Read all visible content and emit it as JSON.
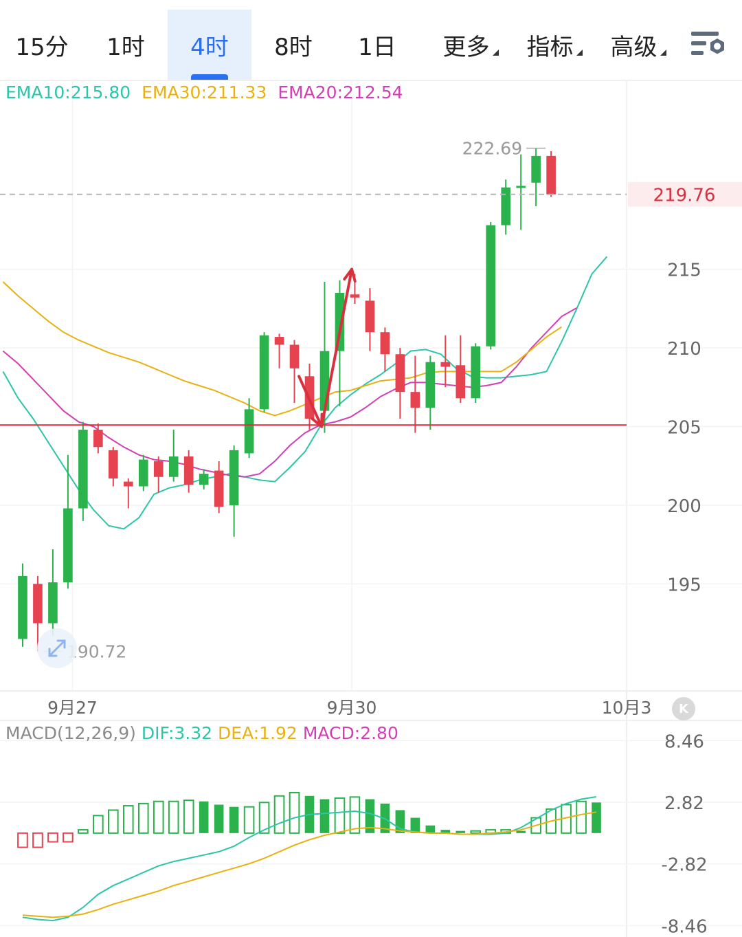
{
  "tabs": [
    {
      "label": "15分",
      "active": false,
      "dropdown": false
    },
    {
      "label": "1时",
      "active": false,
      "dropdown": false
    },
    {
      "label": "4时",
      "active": true,
      "dropdown": false
    },
    {
      "label": "8时",
      "active": false,
      "dropdown": false
    },
    {
      "label": "1日",
      "active": false,
      "dropdown": false
    },
    {
      "label": "更多",
      "active": false,
      "dropdown": true
    },
    {
      "label": "指标",
      "active": false,
      "dropdown": true
    },
    {
      "label": "高级",
      "active": false,
      "dropdown": true
    }
  ],
  "icons": {
    "settings": "chart-settings-icon",
    "fullscreen": "expand-arrows-icon",
    "k": "k-badge-icon"
  },
  "colors": {
    "up": "#2bb24c",
    "down": "#e5434f",
    "ema10": "#2cc5a8",
    "ema30": "#e8b10f",
    "ema20": "#d23fb4",
    "dif": "#2cc5a8",
    "dea": "#e8b10f",
    "macd": "#d23fb4",
    "accent": "#2a6ff0",
    "support_line": "#d9303e",
    "last_price_label": "#d9303e"
  },
  "k_button_label": "K",
  "chart_data": {
    "type": "candlestick",
    "ema_legend": [
      {
        "label": "EMA10",
        "value": "215.80"
      },
      {
        "label": "EMA30",
        "value": "211.33"
      },
      {
        "label": "EMA20",
        "value": "212.54"
      }
    ],
    "y_ticks": [
      "215",
      "210",
      "205",
      "200",
      "195"
    ],
    "y_tick_values": [
      215,
      210,
      205,
      200,
      195
    ],
    "x_tick_labels": [
      "9月27",
      "9月30",
      "10月3"
    ],
    "x_tick_at": [
      3.3,
      21.8,
      40
    ],
    "ylim": [
      188.2,
      227.0
    ],
    "xlim": [
      -1.5,
      40.0
    ],
    "last_price": "219.76",
    "last_price_value": 219.76,
    "high_label": "222.69",
    "high_value": 222.69,
    "high_index": 35,
    "low_label": "190.72",
    "low_value": 190.72,
    "low_index": 1,
    "support_level": 205.1,
    "annotation_arrows": [
      {
        "from": [
          18.3,
          208.2
        ],
        "to": [
          19.8,
          205.0
        ]
      },
      {
        "from": [
          19.8,
          205.0
        ],
        "to": [
          21.8,
          215.0
        ]
      }
    ],
    "candles": [
      {
        "o": 191.5,
        "c": 195.5,
        "h": 196.3,
        "l": 191.0
      },
      {
        "o": 195.0,
        "c": 192.5,
        "h": 195.5,
        "l": 190.72
      },
      {
        "o": 192.5,
        "c": 195.1,
        "h": 197.2,
        "l": 191.7
      },
      {
        "o": 195.1,
        "c": 199.8,
        "h": 203.2,
        "l": 194.7
      },
      {
        "o": 199.8,
        "c": 204.8,
        "h": 205.3,
        "l": 199.0
      },
      {
        "o": 204.8,
        "c": 203.7,
        "h": 205.2,
        "l": 203.3
      },
      {
        "o": 203.5,
        "c": 201.7,
        "h": 203.7,
        "l": 201.2
      },
      {
        "o": 201.5,
        "c": 201.2,
        "h": 201.7,
        "l": 199.8
      },
      {
        "o": 201.2,
        "c": 202.9,
        "h": 203.2,
        "l": 200.9
      },
      {
        "o": 202.8,
        "c": 201.8,
        "h": 203.1,
        "l": 200.8
      },
      {
        "o": 201.8,
        "c": 203.1,
        "h": 204.8,
        "l": 201.5
      },
      {
        "o": 203.1,
        "c": 201.3,
        "h": 203.5,
        "l": 200.8
      },
      {
        "o": 201.3,
        "c": 202.0,
        "h": 202.3,
        "l": 201.0
      },
      {
        "o": 202.2,
        "c": 199.9,
        "h": 202.8,
        "l": 199.5
      },
      {
        "o": 200.0,
        "c": 203.5,
        "h": 203.8,
        "l": 198.0
      },
      {
        "o": 203.3,
        "c": 206.1,
        "h": 206.8,
        "l": 203.0
      },
      {
        "o": 206.1,
        "c": 210.8,
        "h": 211.0,
        "l": 205.9
      },
      {
        "o": 210.7,
        "c": 210.2,
        "h": 210.9,
        "l": 208.7
      },
      {
        "o": 210.2,
        "c": 208.7,
        "h": 210.5,
        "l": 206.5
      },
      {
        "o": 208.2,
        "c": 205.5,
        "h": 209.0,
        "l": 204.8
      },
      {
        "o": 206.0,
        "c": 209.8,
        "h": 214.2,
        "l": 204.6
      },
      {
        "o": 209.8,
        "c": 213.5,
        "h": 214.3,
        "l": 206.3
      },
      {
        "o": 213.4,
        "c": 213.2,
        "h": 214.7,
        "l": 212.8
      },
      {
        "o": 213.0,
        "c": 211.0,
        "h": 213.8,
        "l": 209.8
      },
      {
        "o": 211.0,
        "c": 209.6,
        "h": 211.3,
        "l": 208.5
      },
      {
        "o": 209.6,
        "c": 207.2,
        "h": 210.0,
        "l": 205.5
      },
      {
        "o": 207.2,
        "c": 206.2,
        "h": 209.5,
        "l": 204.6
      },
      {
        "o": 206.2,
        "c": 209.1,
        "h": 209.5,
        "l": 204.8
      },
      {
        "o": 209.1,
        "c": 208.8,
        "h": 210.8,
        "l": 207.5
      },
      {
        "o": 208.9,
        "c": 206.8,
        "h": 210.8,
        "l": 206.5
      },
      {
        "o": 206.8,
        "c": 210.1,
        "h": 210.3,
        "l": 206.5
      },
      {
        "o": 210.1,
        "c": 217.8,
        "h": 218.0,
        "l": 209.9
      },
      {
        "o": 217.8,
        "c": 220.2,
        "h": 220.7,
        "l": 217.2
      },
      {
        "o": 220.2,
        "c": 220.3,
        "h": 222.3,
        "l": 217.5
      },
      {
        "o": 220.5,
        "c": 222.2,
        "h": 222.69,
        "l": 219.0
      },
      {
        "o": 222.2,
        "c": 219.76,
        "h": 222.5,
        "l": 219.6
      }
    ],
    "ema_series": [
      {
        "key": "ema10",
        "start": -1.3,
        "values": [
          208.5,
          206.8,
          205.5,
          204.0,
          202.5,
          201.0,
          199.7,
          198.7,
          198.5,
          199.2,
          200.7,
          201.1,
          201.3,
          201.6,
          201.8,
          202.0,
          201.8,
          201.6,
          201.5,
          202.4,
          203.4,
          205.0,
          206.2,
          207.0,
          207.7,
          208.3,
          209.0,
          209.8,
          209.9,
          209.6,
          208.7,
          208.2,
          208.1,
          208.1,
          208.2,
          208.3,
          208.5,
          210.4,
          212.5,
          214.7,
          215.8
        ]
      },
      {
        "key": "ema20",
        "start": -1.3,
        "values": [
          209.8,
          209.0,
          208.0,
          207.0,
          206.0,
          205.3,
          205.0,
          204.3,
          203.7,
          203.2,
          202.9,
          202.8,
          202.6,
          202.3,
          202.1,
          201.9,
          201.8,
          202.0,
          202.8,
          203.8,
          204.6,
          205.1,
          205.3,
          205.6,
          206.2,
          206.9,
          207.4,
          207.8,
          207.8,
          207.7,
          207.6,
          207.5,
          207.6,
          207.8,
          208.8,
          210.0,
          211.0,
          212.0,
          212.54
        ]
      },
      {
        "key": "ema30",
        "start": -1.3,
        "values": [
          214.2,
          213.3,
          212.5,
          211.7,
          211.0,
          210.5,
          210.1,
          209.7,
          209.4,
          209.1,
          208.7,
          208.3,
          207.9,
          207.6,
          207.3,
          206.9,
          206.5,
          206.0,
          205.7,
          206.0,
          206.4,
          206.8,
          207.2,
          207.3,
          207.6,
          207.9,
          208.0,
          208.1,
          208.4,
          208.5,
          208.5,
          208.5,
          208.5,
          208.5,
          209.1,
          209.9,
          210.7,
          211.33
        ]
      }
    ],
    "macd_legend": {
      "name": "MACD(12,26,9)",
      "dif": "DIF:3.32",
      "dea": "DEA:1.92",
      "macd": "MACD:2.80"
    },
    "macd_y_ticks": [
      "8.46",
      "2.82",
      "-2.82",
      "-8.46"
    ],
    "macd_y_tick_values": [
      8.46,
      2.82,
      -2.82,
      -8.46
    ],
    "macd_ylim": [
      -9.5,
      10.3
    ],
    "macd_hist": [
      -1.3,
      -1.3,
      -0.8,
      -0.8,
      0.3,
      1.6,
      2.1,
      2.5,
      2.7,
      2.9,
      2.9,
      3.0,
      2.9,
      2.6,
      2.4,
      2.4,
      2.8,
      3.4,
      3.7,
      3.4,
      3.1,
      3.2,
      3.3,
      3.1,
      2.7,
      2.1,
      1.4,
      0.7,
      0.3,
      0.2,
      0.2,
      0.3,
      0.3,
      0.2,
      1.4,
      2.2,
      2.6,
      2.9,
      2.8
    ],
    "macd_dif": [
      -7.7,
      -7.9,
      -8.0,
      -7.7,
      -6.8,
      -5.6,
      -4.8,
      -4.2,
      -3.6,
      -3.0,
      -2.6,
      -2.3,
      -2.0,
      -1.7,
      -1.2,
      -0.4,
      0.3,
      0.9,
      1.4,
      1.7,
      1.8,
      1.9,
      2.0,
      1.8,
      1.3,
      0.4,
      0.1,
      0.0,
      0.0,
      -0.1,
      -0.1,
      -0.1,
      0.0,
      0.5,
      1.3,
      2.1,
      2.7,
      3.1,
      3.32
    ],
    "macd_dea": [
      -7.5,
      -7.6,
      -7.7,
      -7.6,
      -7.4,
      -7.0,
      -6.5,
      -6.1,
      -5.7,
      -5.3,
      -4.8,
      -4.4,
      -4.0,
      -3.6,
      -3.2,
      -2.8,
      -2.3,
      -1.7,
      -1.1,
      -0.6,
      -0.2,
      0.1,
      0.4,
      0.5,
      0.4,
      0.2,
      0.1,
      0.0,
      0.0,
      -0.1,
      -0.1,
      0.0,
      0.1,
      0.3,
      0.7,
      1.1,
      1.4,
      1.7,
      1.92
    ]
  }
}
